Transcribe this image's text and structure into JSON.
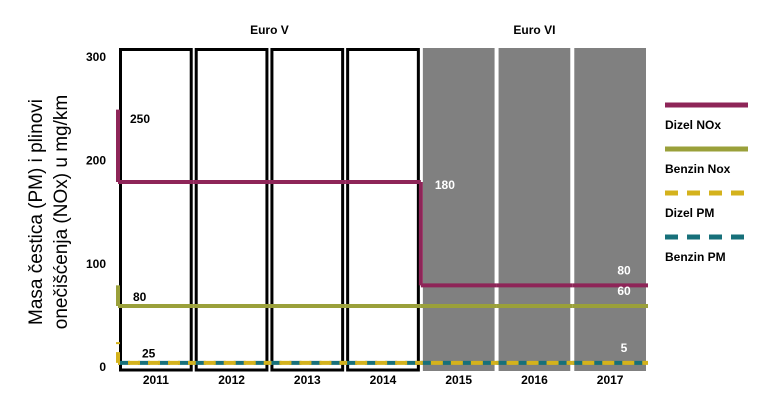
{
  "chart_data": {
    "type": "step",
    "y_label_lines": [
      "Masa čestica (PM) i plinovi",
      "onečišćenja (NOx) u mg/km"
    ],
    "categories": [
      "2011",
      "2012",
      "2013",
      "2014",
      "2015",
      "2016",
      "2017"
    ],
    "groups": [
      {
        "name": "Euro V",
        "span": 4,
        "color": "#ffffff",
        "border": "#000000"
      },
      {
        "name": "Euro VI",
        "span": 3,
        "color": "#808080",
        "border": "#ffffff"
      }
    ],
    "ylim": [
      0,
      300
    ],
    "yticks": [
      0,
      100,
      200,
      300
    ],
    "series": [
      {
        "name": "Dizel NOx",
        "color": "#8e2558",
        "dashed": false,
        "start_value": 250,
        "values": [
          180,
          180,
          180,
          180,
          80,
          80,
          80
        ]
      },
      {
        "name": "Benzin Nox",
        "color": "#9aa03a",
        "dashed": false,
        "start_value": 80,
        "values": [
          60,
          60,
          60,
          60,
          60,
          60,
          60
        ]
      },
      {
        "name": "Benzin PM",
        "color": "#17707a",
        "dashed": true,
        "values": [
          5,
          5,
          5,
          5,
          5,
          5,
          5
        ]
      },
      {
        "name": "Dizel PM",
        "color": "#d4b21c",
        "dashed": true,
        "start_value": 25,
        "values": [
          5,
          5,
          5,
          5,
          5,
          5,
          5
        ]
      }
    ]
  }
}
